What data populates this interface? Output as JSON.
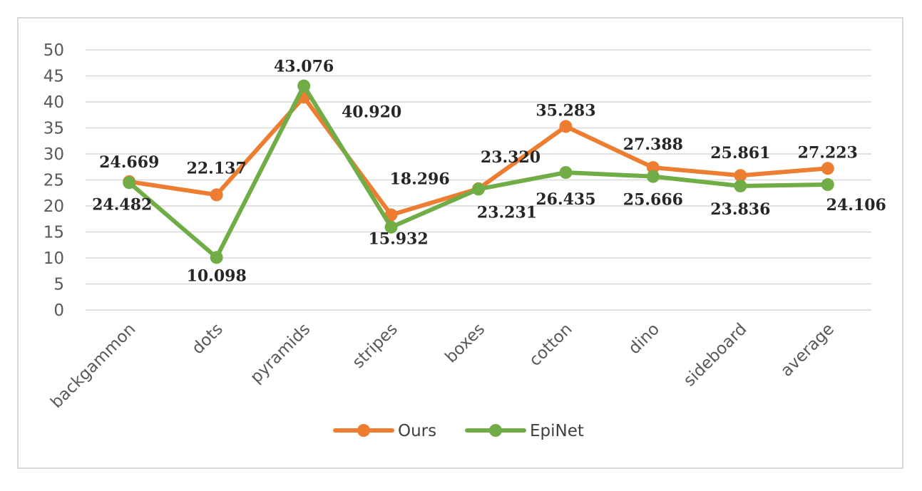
{
  "chart_data": {
    "type": "line",
    "title": "",
    "xlabel": "",
    "ylabel": "",
    "categories": [
      "backgammon",
      "dots",
      "pyramids",
      "stripes",
      "boxes",
      "cotton",
      "dino",
      "sideboard",
      "average"
    ],
    "ylim": [
      0,
      50
    ],
    "yticks": [
      "0",
      "5",
      "10",
      "15",
      "20",
      "25",
      "30",
      "35",
      "40",
      "45",
      "50"
    ],
    "grid": true,
    "legend_position": "bottom",
    "series": [
      {
        "name": "Ours",
        "color": "#ed7d31",
        "values": [
          24.669,
          22.137,
          40.92,
          18.296,
          23.32,
          35.283,
          27.388,
          25.861,
          27.223
        ],
        "labels": [
          "24.669",
          "22.137",
          "40.920",
          "18.296",
          "23.320",
          "35.283",
          "27.388",
          "25.861",
          "27.223"
        ]
      },
      {
        "name": "EpiNet",
        "color": "#70ad47",
        "values": [
          24.482,
          10.098,
          43.076,
          15.932,
          23.231,
          26.435,
          25.666,
          23.836,
          24.106
        ],
        "labels": [
          "24.482",
          "10.098",
          "43.076",
          "15.932",
          "23.231",
          "26.435",
          "25.666",
          "23.836",
          "24.106"
        ]
      }
    ]
  }
}
